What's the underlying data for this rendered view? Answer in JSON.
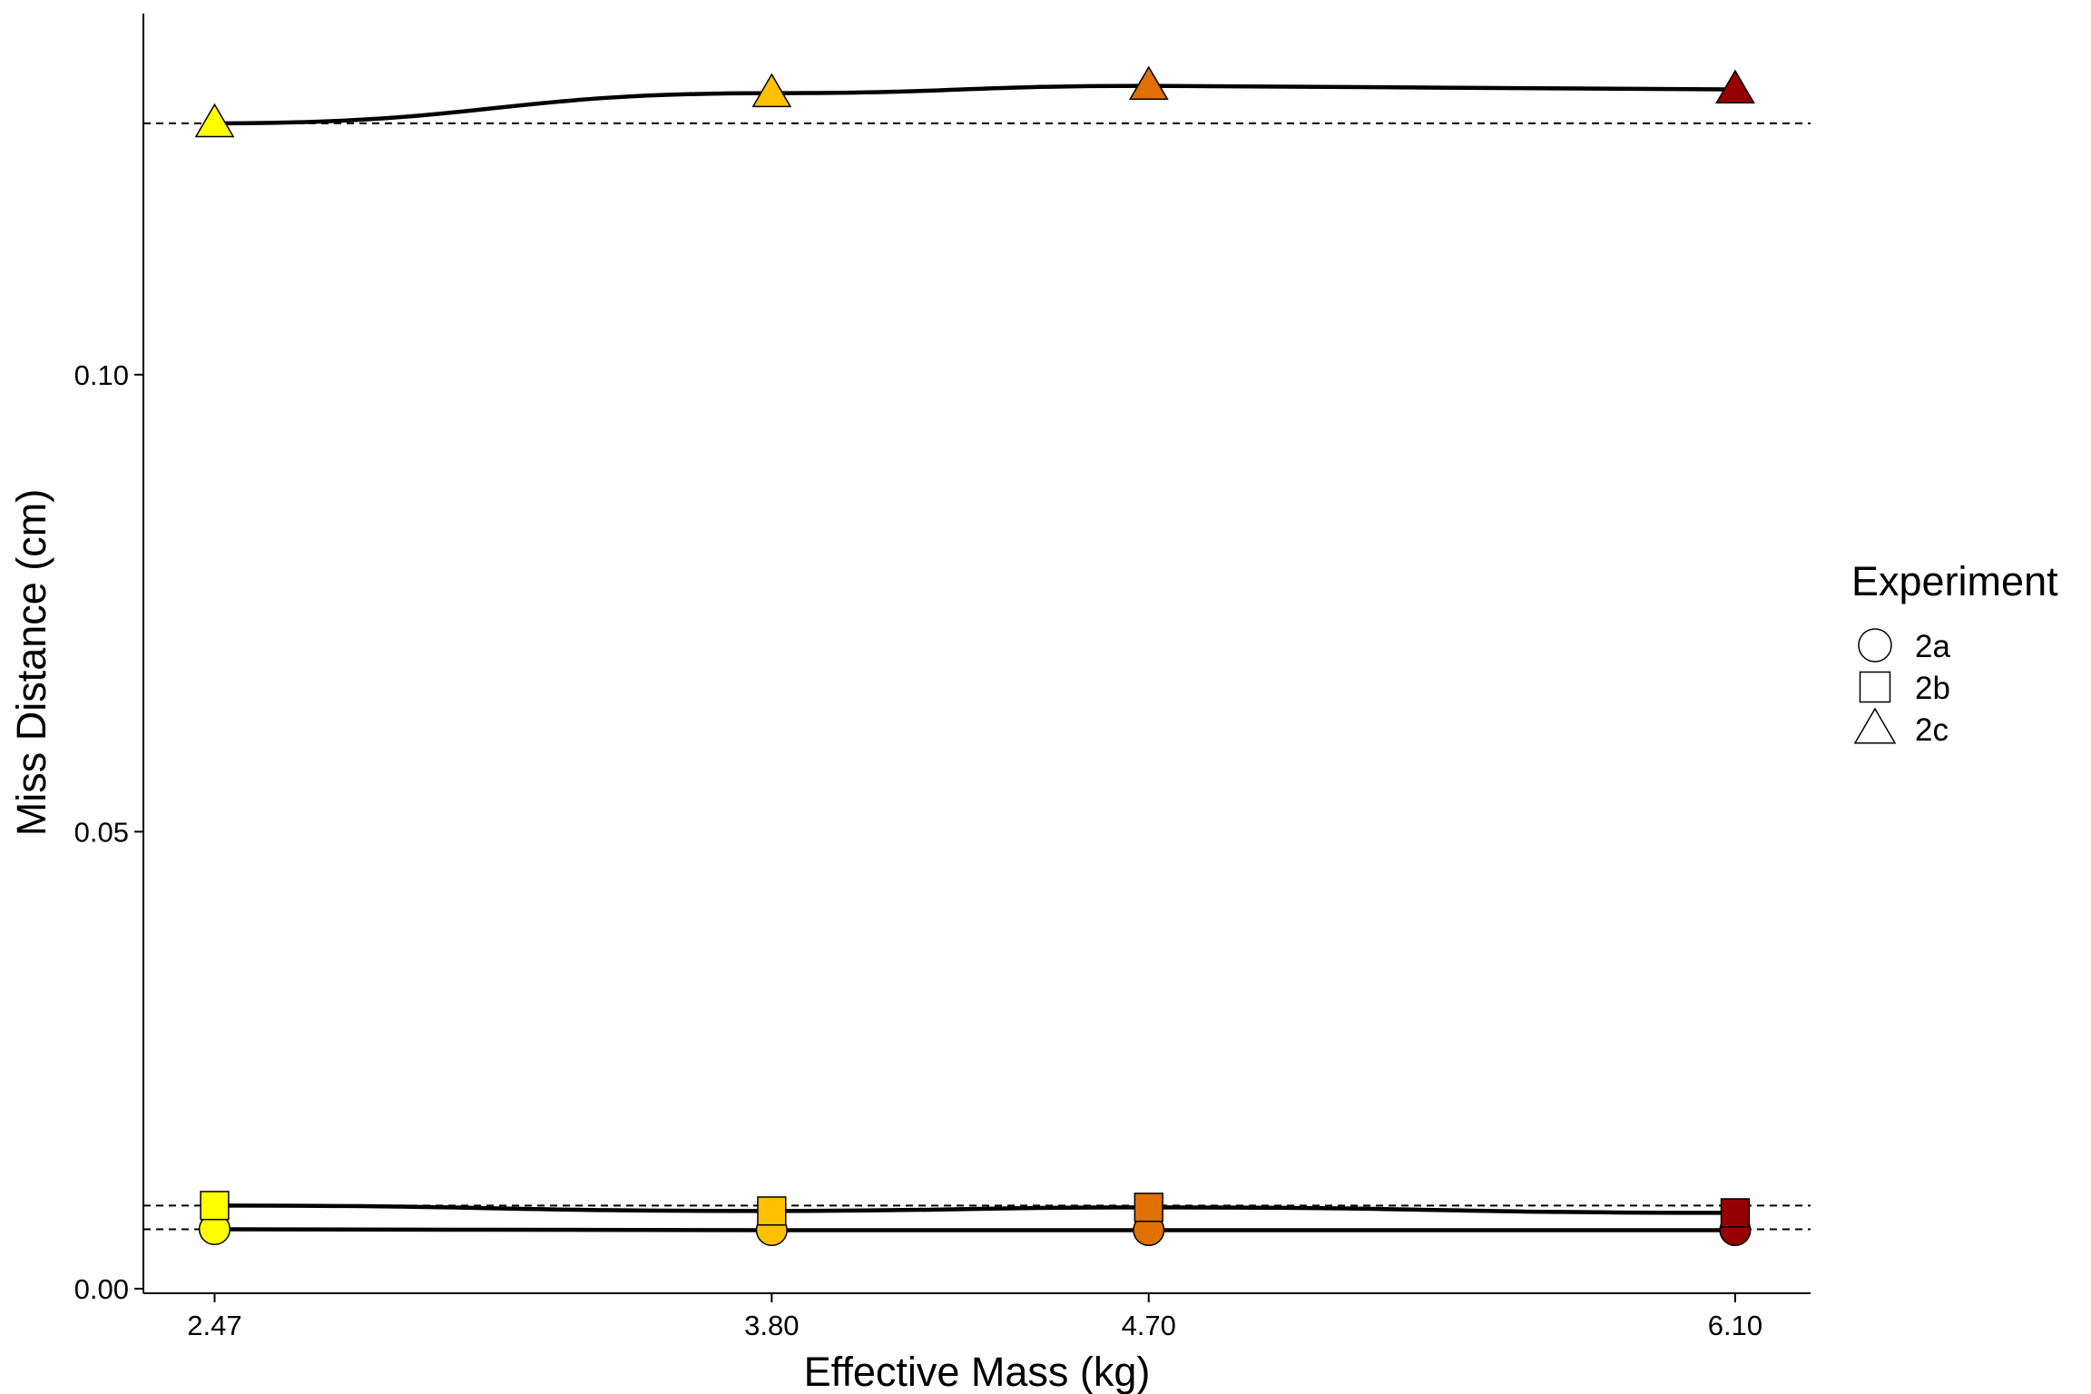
{
  "chart_data": {
    "type": "line",
    "title": "",
    "xlabel": "Effective Mass (kg)",
    "ylabel": "Miss Distance (cm)",
    "x": [
      2.47,
      3.8,
      4.7,
      6.1
    ],
    "x_tick_labels": [
      "2.47",
      "3.80",
      "4.70",
      "6.10"
    ],
    "xlim": [
      2.3,
      6.28
    ],
    "ylim": [
      -0.0005,
      0.1395
    ],
    "y_ticks": [
      0.0,
      0.05,
      0.1
    ],
    "y_tick_labels": [
      "0.00",
      "0.05",
      "0.10"
    ],
    "grid": false,
    "legend": {
      "title": "Experiment",
      "position": "right"
    },
    "point_colors": [
      "#FFFF00",
      "#FFC000",
      "#E07000",
      "#960000"
    ],
    "line_color": "#000000",
    "reference_lines": [
      0.1275,
      0.0091,
      0.0065
    ],
    "series": [
      {
        "name": "2a",
        "marker": "circle",
        "values": [
          0.0065,
          0.0064,
          0.0064,
          0.0064
        ]
      },
      {
        "name": "2b",
        "marker": "square",
        "values": [
          0.0091,
          0.0085,
          0.0089,
          0.0083
        ]
      },
      {
        "name": "2c",
        "marker": "triangle",
        "values": [
          0.1275,
          0.1308,
          0.1316,
          0.1312
        ]
      }
    ]
  }
}
